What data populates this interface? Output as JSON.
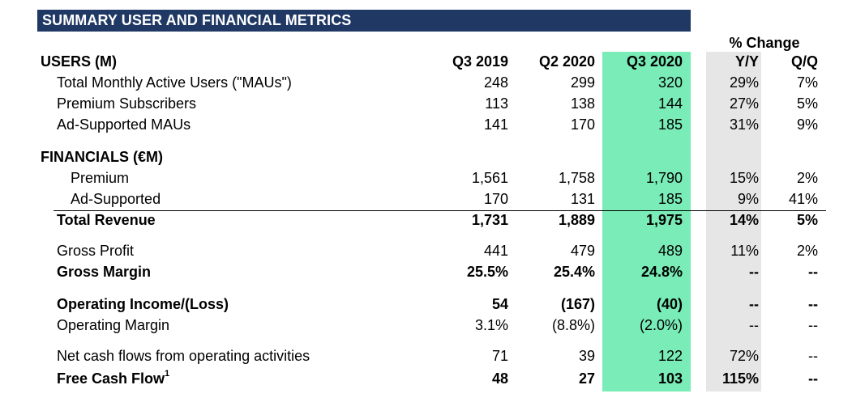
{
  "title": "SUMMARY USER AND FINANCIAL METRICS",
  "pct_change_label": "% Change",
  "header": {
    "label": "USERS (M)",
    "q3_2019": "Q3 2019",
    "q2_2020": "Q2 2020",
    "q3_2020": "Q3 2020",
    "yy": "Y/Y",
    "qq": "Q/Q"
  },
  "users": [
    {
      "label": "Total Monthly Active Users (\"MAUs\")",
      "q3_2019": "248",
      "q2_2020": "299",
      "q3_2020": "320",
      "yy": "29%",
      "qq": "7%"
    },
    {
      "label": "Premium Subscribers",
      "q3_2019": "113",
      "q2_2020": "138",
      "q3_2020": "144",
      "yy": "27%",
      "qq": "5%"
    },
    {
      "label": "Ad-Supported MAUs",
      "q3_2019": "141",
      "q2_2020": "170",
      "q3_2020": "185",
      "yy": "31%",
      "qq": "9%"
    }
  ],
  "financials_label": "FINANCIALS (€M)",
  "revenue": [
    {
      "label": "Premium",
      "q3_2019": "1,561",
      "q2_2020": "1,758",
      "q3_2020": "1,790",
      "yy": "15%",
      "qq": "2%"
    },
    {
      "label": "Ad-Supported",
      "q3_2019": "170",
      "q2_2020": "131",
      "q3_2020": "185",
      "yy": "9%",
      "qq": "41%"
    }
  ],
  "total_revenue": {
    "label": "Total Revenue",
    "q3_2019": "1,731",
    "q2_2020": "1,889",
    "q3_2020": "1,975",
    "yy": "14%",
    "qq": "5%"
  },
  "gross_profit": {
    "label": "Gross Profit",
    "q3_2019": "441",
    "q2_2020": "479",
    "q3_2020": "489",
    "yy": "11%",
    "qq": "2%"
  },
  "gross_margin": {
    "label": "Gross Margin",
    "q3_2019": "25.5%",
    "q2_2020": "25.4%",
    "q3_2020": "24.8%",
    "yy": "--",
    "qq": "--"
  },
  "operating_income": {
    "label": "Operating Income/(Loss)",
    "q3_2019": "54",
    "q2_2020": "(167)",
    "q3_2020": "(40)",
    "yy": "--",
    "qq": "--"
  },
  "operating_margin": {
    "label": "Operating Margin",
    "q3_2019": "3.1%",
    "q2_2020": "(8.8%)",
    "q3_2020": "(2.0%)",
    "yy": "--",
    "qq": "--"
  },
  "net_cash_flows": {
    "label": "Net cash flows from operating activities",
    "q3_2019": "71",
    "q2_2020": "39",
    "q3_2020": "122",
    "yy": "72%",
    "qq": "--"
  },
  "free_cash_flow": {
    "label": "Free Cash Flow",
    "footnote": "1",
    "q3_2019": "48",
    "q2_2020": "27",
    "q3_2020": "103",
    "yy": "115%",
    "qq": "--"
  },
  "colors": {
    "title_bg": "#1f3864",
    "q3_2020_highlight": "#79ecb7",
    "yy_highlight": "#e7e6e6"
  }
}
